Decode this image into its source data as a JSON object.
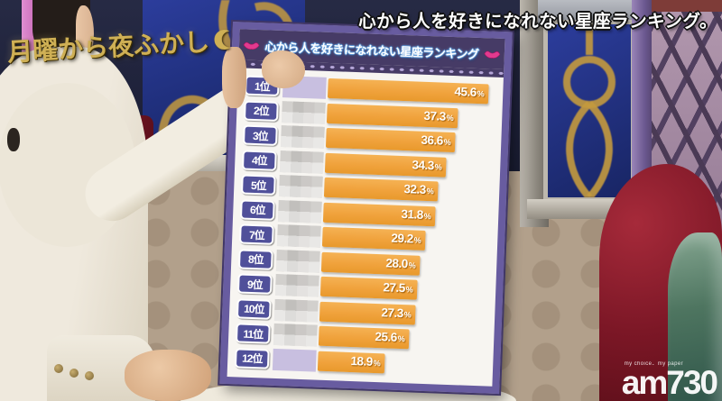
{
  "broadcast": {
    "show_logo": "月曜から夜ふかし",
    "headline": "心から人を好きになれない星座ランキング。"
  },
  "board": {
    "title": "心から人を好きになれない星座ランキング",
    "rows": [
      {
        "rank_label": "1位",
        "value": 45.6,
        "display": "45.6",
        "unit": "%",
        "censored": true,
        "tint": "purple"
      },
      {
        "rank_label": "2位",
        "value": 37.3,
        "display": "37.3",
        "unit": "%",
        "censored": true,
        "tint": "gray"
      },
      {
        "rank_label": "3位",
        "value": 36.6,
        "display": "36.6",
        "unit": "%",
        "censored": true,
        "tint": "gray"
      },
      {
        "rank_label": "4位",
        "value": 34.3,
        "display": "34.3",
        "unit": "%",
        "censored": true,
        "tint": "gray"
      },
      {
        "rank_label": "5位",
        "value": 32.3,
        "display": "32.3",
        "unit": "%",
        "censored": true,
        "tint": "gray"
      },
      {
        "rank_label": "6位",
        "value": 31.8,
        "display": "31.8",
        "unit": "%",
        "censored": true,
        "tint": "gray"
      },
      {
        "rank_label": "7位",
        "value": 29.2,
        "display": "29.2",
        "unit": "%",
        "censored": true,
        "tint": "gray"
      },
      {
        "rank_label": "8位",
        "value": 28.0,
        "display": "28.0",
        "unit": "%",
        "censored": true,
        "tint": "gray"
      },
      {
        "rank_label": "9位",
        "value": 27.5,
        "display": "27.5",
        "unit": "%",
        "censored": true,
        "tint": "gray"
      },
      {
        "rank_label": "10位",
        "value": 27.3,
        "display": "27.3",
        "unit": "%",
        "censored": true,
        "tint": "gray"
      },
      {
        "rank_label": "11位",
        "value": 25.6,
        "display": "25.6",
        "unit": "%",
        "censored": true,
        "tint": "gray"
      },
      {
        "rank_label": "12位",
        "value": 18.9,
        "display": "18.9",
        "unit": "%",
        "censored": true,
        "tint": "purple"
      }
    ]
  },
  "watermark": {
    "brand": "am730",
    "slogan": "my choice．my paper"
  },
  "colors": {
    "bar_orange": "#f0a23c",
    "board_border": "#685ca0",
    "rank_box_blue": "#50509a",
    "title_band_purple": "#463b66",
    "highlight_lavender": "#c8bfe0",
    "lips_pink": "#e23a8e",
    "logo_gold": "#cfb055"
  },
  "chart_data": {
    "type": "bar",
    "orientation": "horizontal",
    "title": "心から人を好きになれない星座ランキング",
    "categories": [
      "1位",
      "2位",
      "3位",
      "4位",
      "5位",
      "6位",
      "7位",
      "8位",
      "9位",
      "10位",
      "11位",
      "12位"
    ],
    "values": [
      45.6,
      37.3,
      36.6,
      34.3,
      32.3,
      31.8,
      29.2,
      28.0,
      27.5,
      27.3,
      25.6,
      18.9
    ],
    "unit": "%",
    "category_names_censored": true,
    "xlim": [
      0,
      50
    ],
    "grid": false,
    "legend": false
  }
}
